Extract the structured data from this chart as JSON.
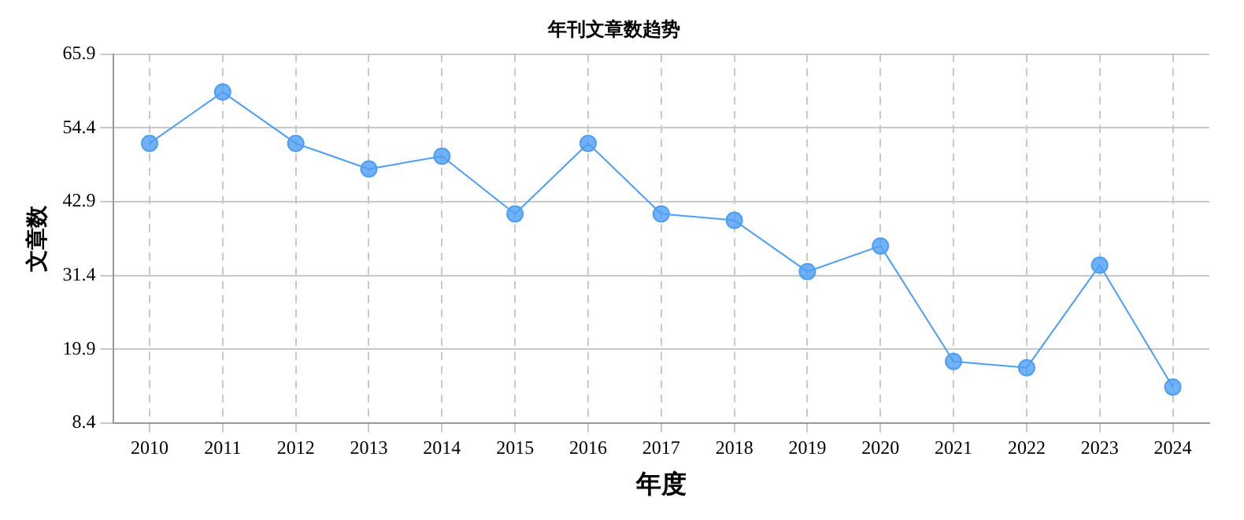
{
  "chart_data": {
    "type": "line",
    "title": "年刊文章数趋势",
    "xlabel": "年度",
    "ylabel": "文章数",
    "categories": [
      "2010",
      "2011",
      "2012",
      "2013",
      "2014",
      "2015",
      "2016",
      "2017",
      "2018",
      "2019",
      "2020",
      "2021",
      "2022",
      "2023",
      "2024"
    ],
    "series": [
      {
        "color": "#4d9ef5",
        "values": [
          52,
          60,
          52,
          48,
          50,
          41,
          52,
          41,
          40,
          32,
          36,
          18,
          17,
          33,
          14
        ]
      }
    ],
    "ylim": [
      8.4,
      65.9
    ],
    "yticks": [
      8.4,
      19.9,
      31.4,
      42.9,
      54.4,
      65.9
    ],
    "grid": true,
    "marker": "circle",
    "line_style": "solid",
    "legend": false
  }
}
